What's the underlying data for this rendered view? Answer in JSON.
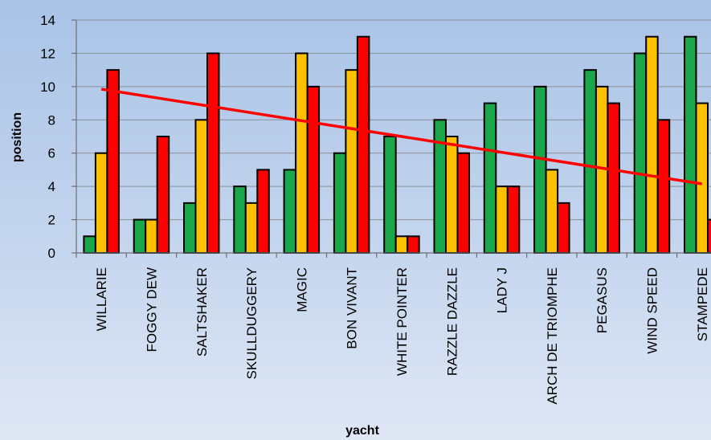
{
  "chart_data": {
    "type": "bar",
    "xlabel": "yacht",
    "ylabel": "position",
    "ylim": [
      0,
      14
    ],
    "yticks": [
      0,
      2,
      4,
      6,
      8,
      10,
      12,
      14
    ],
    "grid": true,
    "legend": "none",
    "categories": [
      "WILLARIE",
      "FOGGY DEW",
      "SALTSHAKER",
      "SKULLDUGGERY",
      "MAGIC",
      "BON VIVANT",
      "WHITE POINTER",
      "RAZZLE DAZZLE",
      "LADY J",
      "ARCH DE TRIOMPHE",
      "PEGASUS",
      "WIND SPEED",
      "STAMPEDE"
    ],
    "series": [
      {
        "color": "#1aa64a",
        "values": [
          1,
          2,
          3,
          4,
          5,
          6,
          7,
          8,
          9,
          10,
          11,
          12,
          13
        ]
      },
      {
        "color": "#ffc000",
        "values": [
          6,
          2,
          8,
          3,
          12,
          11,
          1,
          7,
          4,
          5,
          10,
          13,
          9
        ]
      },
      {
        "color": "#ff0000",
        "values": [
          11,
          7,
          12,
          5,
          10,
          13,
          1,
          6,
          4,
          3,
          9,
          8,
          2
        ]
      }
    ],
    "trendline": {
      "color": "#ff0000",
      "start": 9.85,
      "end": 4.15
    }
  }
}
